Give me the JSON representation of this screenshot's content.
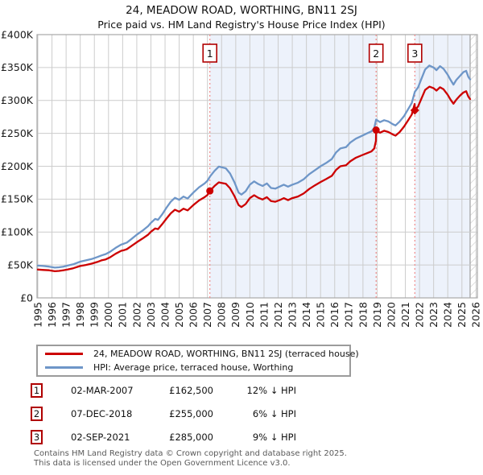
{
  "title": "24, MEADOW ROAD, WORTHING, BN11 2SJ",
  "subtitle": "Price paid vs. HM Land Registry's House Price Index (HPI)",
  "colors": {
    "price_line": "#cc0000",
    "hpi_line": "#6e96c8",
    "shade": "#edf2fb",
    "grid": "#cccccc",
    "plot_border": "#a8a8a8",
    "dashed_marker_line": "#f08a8a",
    "marker_box_border": "#b00000",
    "hatch_line": "#c9c9c9",
    "footer_text": "#5a5a5a"
  },
  "chart_data": {
    "type": "line",
    "title": "24, MEADOW ROAD, WORTHING, BN11 2SJ",
    "subtitle": "Price paid vs. HM Land Registry's House Price Index (HPI)",
    "x_axis": {
      "min": 1995,
      "max": 2026,
      "ticks": [
        1995,
        1996,
        1997,
        1998,
        1999,
        2000,
        2001,
        2002,
        2003,
        2004,
        2005,
        2006,
        2007,
        2008,
        2009,
        2010,
        2011,
        2012,
        2013,
        2014,
        2015,
        2016,
        2017,
        2018,
        2019,
        2020,
        2021,
        2022,
        2023,
        2024,
        2025,
        2026
      ]
    },
    "y_axis": {
      "min": 0,
      "max": 400,
      "units": "GBP thousands",
      "tick_values": [
        0,
        50,
        100,
        150,
        200,
        250,
        300,
        350,
        400
      ],
      "tick_labels": [
        "£0",
        "£50K",
        "£100K",
        "£150K",
        "£200K",
        "£250K",
        "£300K",
        "£350K",
        "£400K"
      ]
    },
    "grid": true,
    "legend_position": "below",
    "series": [
      {
        "name": "HPI: Average price, terraced house, Worthing",
        "color": "#6e96c8",
        "points": [
          [
            1995,
            49
          ],
          [
            1995.4,
            48.5
          ],
          [
            1995.8,
            47.5
          ],
          [
            1996.2,
            46
          ],
          [
            1996.5,
            46.5
          ],
          [
            1996.8,
            47.5
          ],
          [
            1997.1,
            49
          ],
          [
            1997.5,
            51
          ],
          [
            1998,
            55
          ],
          [
            1998.4,
            57
          ],
          [
            1998.8,
            59
          ],
          [
            1999.2,
            62
          ],
          [
            1999.5,
            64.5
          ],
          [
            1999.8,
            66.5
          ],
          [
            2000.1,
            70
          ],
          [
            2000.5,
            76
          ],
          [
            2000.9,
            81
          ],
          [
            2001.1,
            82.5
          ],
          [
            2001.3,
            84
          ],
          [
            2001.6,
            89
          ],
          [
            2002,
            96
          ],
          [
            2002.4,
            102
          ],
          [
            2002.8,
            109
          ],
          [
            2003,
            114
          ],
          [
            2003.3,
            120
          ],
          [
            2003.5,
            118.5
          ],
          [
            2003.8,
            127
          ],
          [
            2004.1,
            137
          ],
          [
            2004.4,
            146
          ],
          [
            2004.7,
            152
          ],
          [
            2005,
            149
          ],
          [
            2005.3,
            154
          ],
          [
            2005.6,
            151
          ],
          [
            2006,
            160
          ],
          [
            2006.4,
            168
          ],
          [
            2006.8,
            174
          ],
          [
            2007,
            178
          ],
          [
            2007.2,
            185
          ],
          [
            2007.5,
            193
          ],
          [
            2007.8,
            199.5
          ],
          [
            2008,
            198.5
          ],
          [
            2008.3,
            197
          ],
          [
            2008.6,
            189
          ],
          [
            2008.9,
            176
          ],
          [
            2009.2,
            160
          ],
          [
            2009.4,
            157
          ],
          [
            2009.7,
            162
          ],
          [
            2010,
            172
          ],
          [
            2010.3,
            177
          ],
          [
            2010.6,
            173
          ],
          [
            2010.9,
            170
          ],
          [
            2011.2,
            174
          ],
          [
            2011.5,
            167
          ],
          [
            2011.8,
            166
          ],
          [
            2012.1,
            169
          ],
          [
            2012.4,
            172
          ],
          [
            2012.7,
            169
          ],
          [
            2013,
            172
          ],
          [
            2013.4,
            175
          ],
          [
            2013.8,
            180
          ],
          [
            2014.2,
            188
          ],
          [
            2014.6,
            194
          ],
          [
            2015,
            200
          ],
          [
            2015.4,
            205
          ],
          [
            2015.8,
            211
          ],
          [
            2016.1,
            221
          ],
          [
            2016.4,
            227
          ],
          [
            2016.8,
            229
          ],
          [
            2017.1,
            236
          ],
          [
            2017.5,
            242
          ],
          [
            2017.9,
            246
          ],
          [
            2018.3,
            250
          ],
          [
            2018.6,
            253
          ],
          [
            2018.8,
            258
          ],
          [
            2018.93,
            271
          ],
          [
            2019.2,
            267
          ],
          [
            2019.5,
            270
          ],
          [
            2019.8,
            268
          ],
          [
            2020.1,
            264
          ],
          [
            2020.3,
            262
          ],
          [
            2020.6,
            268
          ],
          [
            2020.9,
            276
          ],
          [
            2021.2,
            287
          ],
          [
            2021.45,
            296
          ],
          [
            2021.67,
            313
          ],
          [
            2021.9,
            320
          ],
          [
            2022.1,
            331
          ],
          [
            2022.4,
            347
          ],
          [
            2022.7,
            353
          ],
          [
            2023,
            350
          ],
          [
            2023.2,
            346
          ],
          [
            2023.45,
            352
          ],
          [
            2023.7,
            348
          ],
          [
            2024,
            339
          ],
          [
            2024.2,
            331
          ],
          [
            2024.4,
            324
          ],
          [
            2024.6,
            331
          ],
          [
            2024.85,
            337
          ],
          [
            2025.1,
            343
          ],
          [
            2025.3,
            345
          ],
          [
            2025.45,
            336
          ],
          [
            2025.58,
            332
          ]
        ]
      },
      {
        "name": "24, MEADOW ROAD, WORTHING, BN11 2SJ (terraced house)",
        "color": "#cc0000",
        "points": [
          [
            1995,
            43
          ],
          [
            1995.4,
            42.5
          ],
          [
            1995.8,
            42
          ],
          [
            1996.2,
            40.5
          ],
          [
            1996.5,
            41
          ],
          [
            1996.8,
            42
          ],
          [
            1997.1,
            43
          ],
          [
            1997.5,
            45
          ],
          [
            1998,
            48.5
          ],
          [
            1998.4,
            50
          ],
          [
            1998.8,
            52
          ],
          [
            1999.2,
            54.5
          ],
          [
            1999.5,
            57
          ],
          [
            1999.8,
            58.5
          ],
          [
            2000.1,
            61.5
          ],
          [
            2000.5,
            67
          ],
          [
            2000.9,
            71.5
          ],
          [
            2001.1,
            72.5
          ],
          [
            2001.3,
            74
          ],
          [
            2001.6,
            78.5
          ],
          [
            2002,
            84.5
          ],
          [
            2002.4,
            90
          ],
          [
            2002.8,
            96
          ],
          [
            2003,
            100.5
          ],
          [
            2003.3,
            105.5
          ],
          [
            2003.5,
            104.5
          ],
          [
            2003.8,
            112
          ],
          [
            2004.1,
            120.5
          ],
          [
            2004.4,
            128.5
          ],
          [
            2004.7,
            134
          ],
          [
            2005,
            131
          ],
          [
            2005.3,
            135.5
          ],
          [
            2005.6,
            133
          ],
          [
            2006,
            141
          ],
          [
            2006.4,
            148
          ],
          [
            2006.8,
            153
          ],
          [
            2007,
            156.5
          ],
          [
            2007.17,
            162.5
          ],
          [
            2007.5,
            170
          ],
          [
            2007.8,
            175.5
          ],
          [
            2008,
            174.5
          ],
          [
            2008.3,
            173.5
          ],
          [
            2008.6,
            166.5
          ],
          [
            2008.9,
            155
          ],
          [
            2009.2,
            141
          ],
          [
            2009.4,
            138
          ],
          [
            2009.7,
            142.5
          ],
          [
            2010,
            151.5
          ],
          [
            2010.3,
            156
          ],
          [
            2010.6,
            152
          ],
          [
            2010.9,
            149.5
          ],
          [
            2011.2,
            153
          ],
          [
            2011.5,
            147
          ],
          [
            2011.8,
            146
          ],
          [
            2012.1,
            148.5
          ],
          [
            2012.4,
            151.5
          ],
          [
            2012.7,
            148.5
          ],
          [
            2013,
            151.5
          ],
          [
            2013.4,
            154
          ],
          [
            2013.8,
            158.5
          ],
          [
            2014.2,
            165.5
          ],
          [
            2014.6,
            171
          ],
          [
            2015,
            176
          ],
          [
            2015.4,
            180.5
          ],
          [
            2015.8,
            185.5
          ],
          [
            2016.1,
            194.5
          ],
          [
            2016.4,
            200
          ],
          [
            2016.8,
            201.5
          ],
          [
            2017.1,
            207.5
          ],
          [
            2017.5,
            213
          ],
          [
            2017.9,
            216.5
          ],
          [
            2018.3,
            220
          ],
          [
            2018.6,
            222.5
          ],
          [
            2018.8,
            227
          ],
          [
            2018.92,
            238.5
          ],
          [
            2018.93,
            255
          ],
          [
            2019.2,
            251
          ],
          [
            2019.5,
            254
          ],
          [
            2019.8,
            252
          ],
          [
            2020.1,
            248.5
          ],
          [
            2020.3,
            246.5
          ],
          [
            2020.6,
            252
          ],
          [
            2020.9,
            260
          ],
          [
            2021.2,
            270
          ],
          [
            2021.45,
            278.5
          ],
          [
            2021.66,
            294.5
          ],
          [
            2021.67,
            285
          ],
          [
            2021.9,
            291
          ],
          [
            2022.1,
            301
          ],
          [
            2022.4,
            316
          ],
          [
            2022.7,
            321
          ],
          [
            2023,
            318.5
          ],
          [
            2023.2,
            315
          ],
          [
            2023.45,
            320
          ],
          [
            2023.7,
            317
          ],
          [
            2024,
            308.5
          ],
          [
            2024.2,
            301
          ],
          [
            2024.4,
            295
          ],
          [
            2024.6,
            301
          ],
          [
            2024.85,
            307
          ],
          [
            2025.1,
            312
          ],
          [
            2025.3,
            314
          ],
          [
            2025.45,
            306
          ],
          [
            2025.58,
            302
          ]
        ]
      }
    ],
    "sale_markers": [
      {
        "label": "1",
        "year": 2007.17,
        "price_k": 162.5,
        "shape": "circle"
      },
      {
        "label": "2",
        "year": 2018.93,
        "price_k": 255,
        "shape": "circle"
      },
      {
        "label": "3",
        "year": 2021.67,
        "price_k": 285,
        "shape": "diamond"
      }
    ],
    "shaded_regions": [
      [
        2007.17,
        2018.93
      ],
      [
        2021.67,
        2025.58
      ]
    ],
    "hatch_region": [
      2025.58,
      2026.1
    ]
  },
  "legend": {
    "items": [
      {
        "label": "24, MEADOW ROAD, WORTHING, BN11 2SJ (terraced house)",
        "color": "#cc0000"
      },
      {
        "label": "HPI: Average price, terraced house, Worthing",
        "color": "#6e96c8"
      }
    ]
  },
  "transactions": [
    {
      "num": "1",
      "date": "02-MAR-2007",
      "price": "£162,500",
      "vs_hpi": "12% ↓ HPI"
    },
    {
      "num": "2",
      "date": "07-DEC-2018",
      "price": "£255,000",
      "vs_hpi": "6% ↓ HPI"
    },
    {
      "num": "3",
      "date": "02-SEP-2021",
      "price": "£285,000",
      "vs_hpi": "9% ↓ HPI"
    }
  ],
  "footer": {
    "line1": "Contains HM Land Registry data © Crown copyright and database right 2025.",
    "line2": "This data is licensed under the Open Government Licence v3.0."
  }
}
